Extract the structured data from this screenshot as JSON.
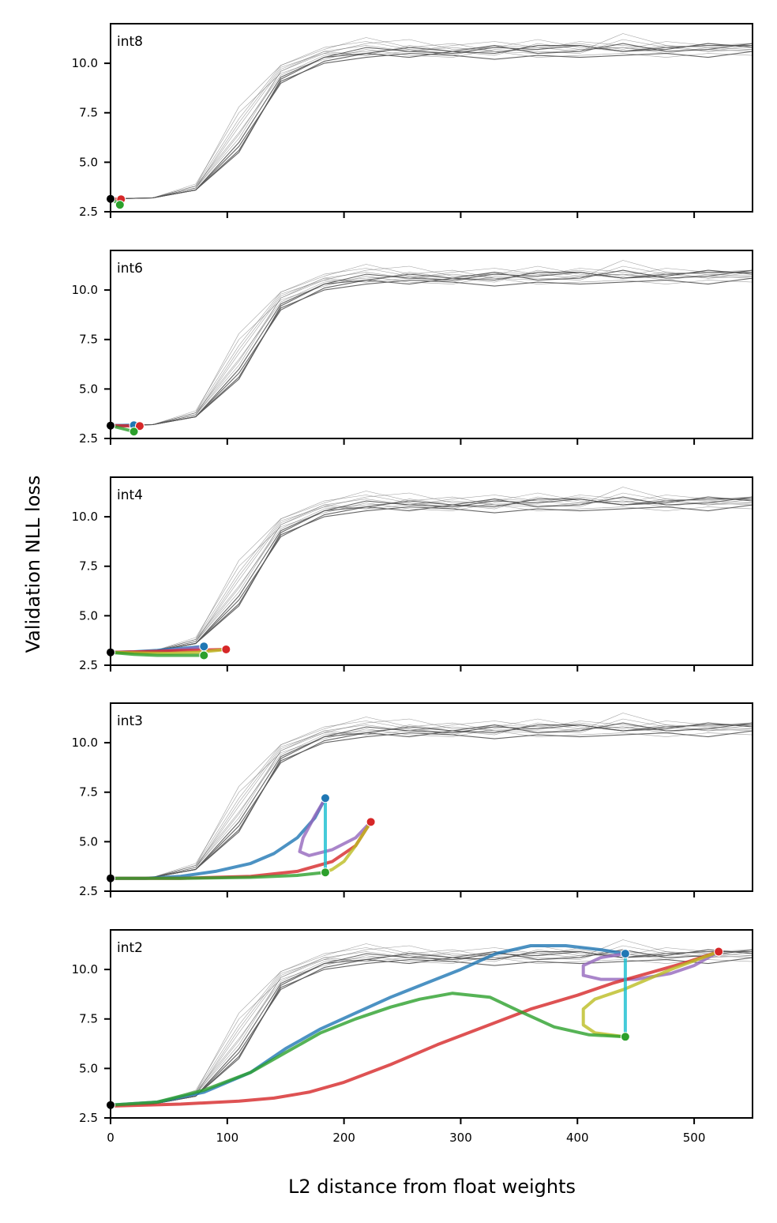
{
  "chart_data": {
    "type": "line",
    "xlabel": "L2 distance from float weights",
    "ylabel": "Validation NLL loss",
    "xlim": [
      0,
      550
    ],
    "ylim": [
      2.5,
      12
    ],
    "x_ticks": [
      0,
      100,
      200,
      300,
      400,
      500
    ],
    "y_ticks": [
      2.5,
      5.0,
      7.5,
      10.0
    ],
    "x_tick_labels": [
      "0",
      "100",
      "200",
      "300",
      "400",
      "500"
    ],
    "y_tick_labels": [
      "2.5",
      "5.0",
      "7.5",
      "10.0"
    ],
    "colors": {
      "gray": "#555555",
      "blue": "#1f77b4",
      "purple": "#9467bd",
      "cyan": "#17becf",
      "red": "#d62728",
      "olive": "#bcbd22",
      "green": "#2ca02c",
      "black": "#000000"
    },
    "background_series": [
      {
        "name": "bg1",
        "x": [
          0,
          36,
          73,
          110,
          146,
          183,
          219,
          256,
          293,
          329,
          366,
          402,
          439,
          476,
          512,
          550
        ],
        "y": [
          3.15,
          3.2,
          3.6,
          5.5,
          9.2,
          10.3,
          10.8,
          10.6,
          10.5,
          10.8,
          10.7,
          10.9,
          10.6,
          10.8,
          10.9,
          10.9
        ]
      },
      {
        "name": "bg2",
        "x": [
          0,
          36,
          73,
          110,
          146,
          183,
          219,
          256,
          293,
          329,
          366,
          402,
          439,
          476,
          512,
          550
        ],
        "y": [
          3.15,
          3.2,
          3.7,
          6.2,
          9.6,
          10.6,
          10.4,
          10.9,
          10.6,
          10.4,
          11.0,
          10.7,
          10.8,
          10.5,
          10.8,
          10.7
        ]
      },
      {
        "name": "bg3",
        "x": [
          0,
          36,
          73,
          110,
          146,
          183,
          219,
          256,
          293,
          329,
          366,
          402,
          439,
          476,
          512,
          550
        ],
        "y": [
          3.15,
          3.2,
          3.8,
          7.8,
          9.9,
          10.7,
          11.3,
          10.8,
          11.0,
          10.6,
          10.7,
          11.1,
          10.9,
          10.7,
          11.0,
          10.8
        ]
      },
      {
        "name": "bg4",
        "x": [
          0,
          36,
          73,
          110,
          146,
          183,
          219,
          256,
          293,
          329,
          366,
          402,
          439,
          476,
          512,
          550
        ],
        "y": [
          3.15,
          3.2,
          3.6,
          5.8,
          9.0,
          10.1,
          10.5,
          10.3,
          10.6,
          10.9,
          10.5,
          10.6,
          11.0,
          10.6,
          10.7,
          11.0
        ]
      },
      {
        "name": "bg5",
        "x": [
          0,
          36,
          73,
          110,
          146,
          183,
          219,
          256,
          293,
          329,
          366,
          402,
          439,
          476,
          512,
          550
        ],
        "y": [
          3.15,
          3.2,
          3.7,
          7.0,
          9.8,
          10.5,
          11.0,
          11.2,
          10.7,
          10.8,
          11.2,
          10.8,
          10.6,
          10.9,
          10.6,
          10.7
        ]
      },
      {
        "name": "bg6",
        "x": [
          0,
          36,
          73,
          110,
          146,
          183,
          219,
          256,
          293,
          329,
          366,
          402,
          439,
          476,
          512,
          550
        ],
        "y": [
          3.15,
          3.2,
          3.8,
          6.5,
          9.4,
          10.4,
          10.6,
          10.7,
          10.5,
          10.6,
          10.3,
          10.4,
          10.5,
          10.3,
          10.5,
          10.4
        ]
      },
      {
        "name": "bg7",
        "x": [
          0,
          36,
          73,
          110,
          146,
          183,
          219,
          256,
          293,
          329,
          366,
          402,
          439,
          476,
          512,
          550
        ],
        "y": [
          3.15,
          3.2,
          3.6,
          5.6,
          9.1,
          10.0,
          10.3,
          10.5,
          10.4,
          10.2,
          10.4,
          10.3,
          10.4,
          10.5,
          10.3,
          10.6
        ]
      },
      {
        "name": "bg8",
        "x": [
          0,
          36,
          73,
          110,
          146,
          183,
          219,
          256,
          293,
          329,
          366,
          402,
          439,
          476,
          512,
          550
        ],
        "y": [
          3.15,
          3.2,
          3.7,
          6.8,
          9.7,
          10.6,
          10.9,
          10.6,
          10.9,
          11.1,
          10.8,
          11.0,
          10.7,
          11.1,
          10.9,
          11.0
        ]
      },
      {
        "name": "bg9",
        "x": [
          0,
          36,
          73,
          110,
          146,
          183,
          219,
          256,
          293,
          329,
          366,
          402,
          439,
          476,
          512,
          550
        ],
        "y": [
          3.15,
          3.2,
          3.9,
          7.5,
          9.5,
          10.2,
          10.7,
          10.4,
          10.3,
          10.7,
          10.6,
          10.5,
          11.2,
          10.8,
          10.6,
          10.9
        ]
      },
      {
        "name": "bg10",
        "x": [
          0,
          36,
          73,
          110,
          146,
          183,
          219,
          256,
          293,
          329,
          366,
          402,
          439,
          476,
          512,
          550
        ],
        "y": [
          3.15,
          3.2,
          3.6,
          6.0,
          9.3,
          10.3,
          10.5,
          10.8,
          10.6,
          10.5,
          10.9,
          10.9,
          10.6,
          10.7,
          11.0,
          10.8
        ]
      },
      {
        "name": "bg11",
        "x": [
          0,
          36,
          73,
          110,
          146,
          183,
          219,
          256,
          293,
          329,
          366,
          402,
          439,
          476,
          512,
          550
        ],
        "y": [
          3.15,
          3.2,
          3.7,
          6.4,
          9.6,
          10.5,
          10.4,
          10.6,
          10.8,
          10.6,
          10.5,
          10.7,
          10.8,
          10.6,
          10.7,
          10.6
        ]
      },
      {
        "name": "bg12",
        "x": [
          0,
          36,
          73,
          110,
          146,
          183,
          219,
          256,
          293,
          329,
          366,
          402,
          439,
          476,
          512,
          550
        ],
        "y": [
          3.15,
          3.2,
          3.8,
          7.2,
          9.9,
          10.8,
          11.1,
          10.7,
          10.4,
          10.9,
          10.8,
          10.6,
          11.5,
          10.9,
          10.8,
          11.0
        ]
      }
    ],
    "panels": [
      {
        "label": "int8",
        "series": [
          {
            "name": "red",
            "color": "#d62728",
            "x": [
              0,
              3,
              6,
              9
            ],
            "y": [
              3.15,
              3.15,
              3.14,
              3.13
            ]
          },
          {
            "name": "green",
            "color": "#2ca02c",
            "x": [
              0,
              3,
              6,
              8
            ],
            "y": [
              3.15,
              3.05,
              2.95,
              2.85
            ]
          }
        ],
        "markers": [
          {
            "x": 0,
            "y": 3.15,
            "color": "#000000"
          },
          {
            "x": 9,
            "y": 3.13,
            "color": "#d62728"
          },
          {
            "x": 8,
            "y": 2.85,
            "color": "#2ca02c"
          }
        ]
      },
      {
        "label": "int6",
        "series": [
          {
            "name": "purple",
            "color": "#9467bd",
            "x": [
              0,
              10,
              20
            ],
            "y": [
              3.15,
              3.16,
              3.17
            ]
          },
          {
            "name": "blue",
            "color": "#1f77b4",
            "x": [
              0,
              10,
              20
            ],
            "y": [
              3.15,
              3.16,
              3.17
            ]
          },
          {
            "name": "red",
            "color": "#d62728",
            "x": [
              0,
              12,
              25
            ],
            "y": [
              3.15,
              3.14,
              3.13
            ]
          },
          {
            "name": "green",
            "color": "#2ca02c",
            "x": [
              0,
              10,
              20
            ],
            "y": [
              3.15,
              3.0,
              2.85
            ]
          }
        ],
        "markers": [
          {
            "x": 0,
            "y": 3.15,
            "color": "#000000"
          },
          {
            "x": 20,
            "y": 3.17,
            "color": "#1f77b4"
          },
          {
            "x": 25,
            "y": 3.13,
            "color": "#d62728"
          },
          {
            "x": 20,
            "y": 2.85,
            "color": "#2ca02c"
          }
        ]
      },
      {
        "label": "int4",
        "series": [
          {
            "name": "blue",
            "color": "#1f77b4",
            "x": [
              0,
              20,
              40,
              60,
              80
            ],
            "y": [
              3.15,
              3.18,
              3.25,
              3.35,
              3.45
            ]
          },
          {
            "name": "purple",
            "color": "#9467bd",
            "x": [
              0,
              20,
              40,
              60,
              80
            ],
            "y": [
              3.15,
              3.17,
              3.2,
              3.3,
              3.4
            ]
          },
          {
            "name": "red",
            "color": "#d62728",
            "x": [
              0,
              25,
              50,
              75,
              99
            ],
            "y": [
              3.15,
              3.18,
              3.22,
              3.26,
              3.3
            ]
          },
          {
            "name": "olive",
            "color": "#bcbd22",
            "x": [
              0,
              25,
              50,
              75,
              99
            ],
            "y": [
              3.15,
              3.12,
              3.1,
              3.15,
              3.3
            ]
          },
          {
            "name": "cyan",
            "color": "#17becf",
            "x": [
              80,
              80
            ],
            "y": [
              3.45,
              3.0
            ]
          },
          {
            "name": "green",
            "color": "#2ca02c",
            "x": [
              0,
              20,
              40,
              60,
              80
            ],
            "y": [
              3.15,
              3.05,
              3.0,
              3.0,
              3.0
            ]
          }
        ],
        "markers": [
          {
            "x": 0,
            "y": 3.15,
            "color": "#000000"
          },
          {
            "x": 80,
            "y": 3.45,
            "color": "#1f77b4"
          },
          {
            "x": 99,
            "y": 3.3,
            "color": "#d62728"
          },
          {
            "x": 80,
            "y": 3.0,
            "color": "#2ca02c"
          }
        ]
      },
      {
        "label": "int3",
        "series": [
          {
            "name": "blue",
            "color": "#1f77b4",
            "x": [
              0,
              30,
              60,
              90,
              120,
              140,
              160,
              175,
              184
            ],
            "y": [
              3.15,
              3.15,
              3.25,
              3.5,
              3.9,
              4.4,
              5.2,
              6.2,
              7.2
            ]
          },
          {
            "name": "purple",
            "color": "#9467bd",
            "x": [
              184,
              175,
              165,
              162,
              170,
              190,
              210,
              223
            ],
            "y": [
              7.2,
              6.3,
              5.2,
              4.5,
              4.3,
              4.6,
              5.2,
              6.0
            ]
          },
          {
            "name": "red",
            "color": "#d62728",
            "x": [
              0,
              60,
              120,
              160,
              190,
              210,
              223
            ],
            "y": [
              3.15,
              3.15,
              3.25,
              3.5,
              4.0,
              4.8,
              6.0
            ]
          },
          {
            "name": "olive",
            "color": "#bcbd22",
            "x": [
              223,
              210,
              200,
              190,
              184
            ],
            "y": [
              6.0,
              4.8,
              4.0,
              3.6,
              3.45
            ]
          },
          {
            "name": "cyan",
            "color": "#17becf",
            "x": [
              184,
              184
            ],
            "y": [
              7.2,
              3.45
            ]
          },
          {
            "name": "green",
            "color": "#2ca02c",
            "x": [
              0,
              60,
              120,
              160,
              184
            ],
            "y": [
              3.15,
              3.15,
              3.2,
              3.3,
              3.45
            ]
          }
        ],
        "markers": [
          {
            "x": 0,
            "y": 3.15,
            "color": "#000000"
          },
          {
            "x": 184,
            "y": 7.2,
            "color": "#1f77b4"
          },
          {
            "x": 223,
            "y": 6.0,
            "color": "#d62728"
          },
          {
            "x": 184,
            "y": 3.45,
            "color": "#2ca02c"
          }
        ]
      },
      {
        "label": "int2",
        "series": [
          {
            "name": "blue",
            "color": "#1f77b4",
            "x": [
              0,
              40,
              80,
              120,
              150,
              180,
              210,
              240,
              270,
              300,
              330,
              360,
              390,
              420,
              441
            ],
            "y": [
              3.15,
              3.3,
              3.8,
              4.8,
              6.0,
              7.0,
              7.8,
              8.6,
              9.3,
              10.0,
              10.8,
              11.2,
              11.2,
              11.0,
              10.8
            ]
          },
          {
            "name": "purple",
            "color": "#9467bd",
            "x": [
              441,
              420,
              405,
              405,
              420,
              450,
              480,
              500,
              521
            ],
            "y": [
              10.8,
              10.6,
              10.2,
              9.7,
              9.5,
              9.5,
              9.8,
              10.2,
              10.9
            ]
          },
          {
            "name": "red",
            "color": "#d62728",
            "x": [
              0,
              60,
              110,
              140,
              170,
              200,
              240,
              280,
              320,
              360,
              400,
              430,
              460,
              490,
              521
            ],
            "y": [
              3.1,
              3.2,
              3.35,
              3.5,
              3.8,
              4.3,
              5.2,
              6.2,
              7.1,
              8.0,
              8.7,
              9.3,
              9.8,
              10.3,
              10.9
            ]
          },
          {
            "name": "olive",
            "color": "#bcbd22",
            "x": [
              521,
              480,
              440,
              415,
              405,
              405,
              415,
              441
            ],
            "y": [
              10.9,
              10.0,
              9.0,
              8.5,
              8.0,
              7.2,
              6.8,
              6.6
            ]
          },
          {
            "name": "cyan",
            "color": "#17becf",
            "x": [
              441,
              441
            ],
            "y": [
              10.8,
              6.6
            ]
          },
          {
            "name": "green",
            "color": "#2ca02c",
            "x": [
              0,
              40,
              80,
              120,
              150,
              180,
              210,
              240,
              265,
              293,
              325,
              350,
              380,
              410,
              441
            ],
            "y": [
              3.15,
              3.3,
              3.9,
              4.8,
              5.8,
              6.8,
              7.5,
              8.1,
              8.5,
              8.8,
              8.6,
              7.9,
              7.1,
              6.7,
              6.6
            ]
          }
        ],
        "markers": [
          {
            "x": 0,
            "y": 3.15,
            "color": "#000000"
          },
          {
            "x": 441,
            "y": 10.8,
            "color": "#1f77b4"
          },
          {
            "x": 521,
            "y": 10.9,
            "color": "#d62728"
          },
          {
            "x": 441,
            "y": 6.6,
            "color": "#2ca02c"
          }
        ]
      }
    ]
  }
}
